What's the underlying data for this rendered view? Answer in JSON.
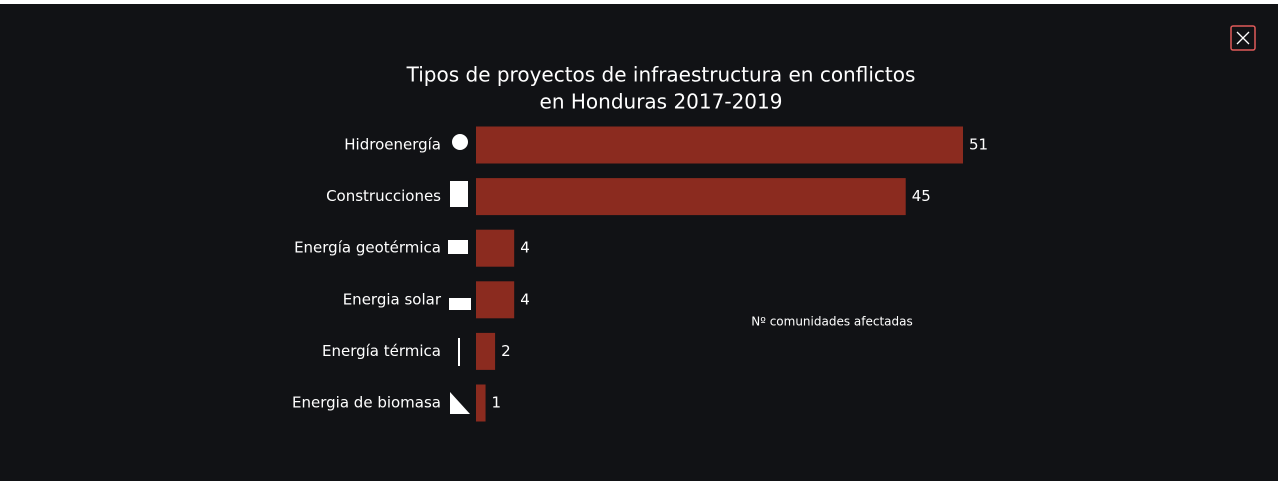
{
  "chart_data": {
    "type": "bar",
    "orientation": "horizontal",
    "title": [
      "Tipos de proyectos de infraestructura en conflictos",
      "en Honduras 2017-2019"
    ],
    "annotation": "Nº comunidades afectadas",
    "categories": [
      "Hidroenergía",
      "Construcciones",
      "Energía geotérmica",
      "Energia solar",
      "Energía térmica",
      "Energia de biomasa"
    ],
    "values": [
      51,
      45,
      4,
      4,
      2,
      1
    ],
    "color": "#8b2b1f"
  }
}
